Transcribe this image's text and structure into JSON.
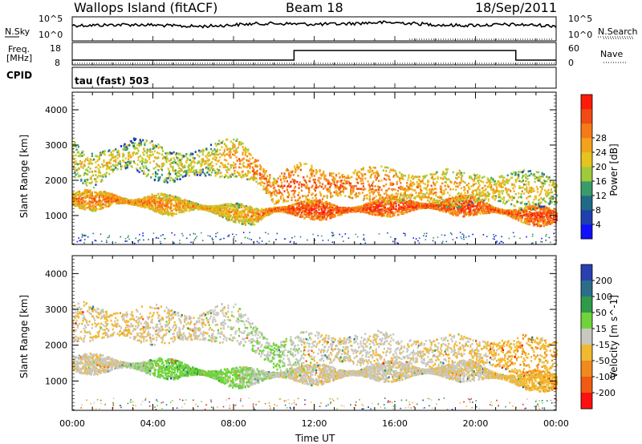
{
  "header": {
    "station": "Wallops Island (fitACF)",
    "beam": "Beam 18",
    "date": "18/Sep/2011"
  },
  "strip_panels": {
    "nsky": {
      "left_label": "N.Sky",
      "right_label": "N.Search",
      "left_ticks": [
        "10^5",
        "10^0"
      ],
      "right_ticks": [
        "10^5",
        "10^0"
      ]
    },
    "freq": {
      "left_label_line1": "Freq.",
      "left_label_line2": "[MHz]",
      "right_label": "Nave",
      "left_ticks": [
        "18",
        "8"
      ],
      "right_ticks": [
        "60",
        "0"
      ]
    },
    "cpid": {
      "label": "CPID",
      "value": "tau (fast) 503"
    }
  },
  "time_axis": {
    "label": "Time UT",
    "ticks": [
      "00:00",
      "04:00",
      "08:00",
      "12:00",
      "16:00",
      "20:00",
      "00:00"
    ]
  },
  "chart_data": [
    {
      "type": "heatmap",
      "quantity": "Power",
      "ylabel": "Slant Range [km]",
      "xlabel": "Time UT",
      "yticks": [
        1000,
        2000,
        3000,
        4000
      ],
      "xlim_hours": [
        0,
        24
      ],
      "ylim": [
        180,
        4500
      ],
      "colorbar": {
        "title": "Power [dB]",
        "ticks": [
          "4",
          "8",
          "12",
          "16",
          "20",
          "24",
          "28"
        ],
        "colors": [
          "#1010ff",
          "#1e3fb0",
          "#1f6a86",
          "#3a9b6a",
          "#9ecb3a",
          "#e6c41e",
          "#f4a21c",
          "#f77a18",
          "#f04b14",
          "#ff1a0a"
        ]
      },
      "echo_bands": [
        {
          "name": "lower",
          "t_hours": [
            0,
            1,
            2,
            3,
            4,
            5,
            6,
            7,
            8,
            9,
            10,
            11,
            12,
            13,
            14,
            16,
            18,
            20,
            22,
            24
          ],
          "range_km": [
            1500,
            1450,
            1500,
            1400,
            1400,
            1300,
            1300,
            1200,
            1100,
            1000,
            1200,
            1200,
            1200,
            1150,
            1200,
            1300,
            1300,
            1300,
            1050,
            1000
          ],
          "power_db": [
            22,
            22,
            24,
            22,
            22,
            20,
            20,
            20,
            18,
            20,
            26,
            28,
            28,
            28,
            28,
            28,
            28,
            28,
            26,
            28
          ]
        },
        {
          "name": "upper",
          "t_hours": [
            0,
            1,
            2,
            3,
            4,
            5,
            6,
            7,
            8,
            9,
            10,
            11,
            12,
            14,
            16,
            18,
            20,
            22
          ],
          "range_km": [
            2700,
            2300,
            2600,
            2800,
            2600,
            2400,
            2500,
            2600,
            2700,
            2400,
            1700,
            2000,
            1900,
            1900,
            1850,
            1800,
            1800,
            1750
          ],
          "power_db": [
            14,
            16,
            16,
            14,
            16,
            14,
            14,
            16,
            20,
            22,
            24,
            26,
            24,
            24,
            22,
            20,
            18,
            16
          ]
        }
      ]
    },
    {
      "type": "heatmap",
      "quantity": "Velocity",
      "ylabel": "Slant Range [km]",
      "xlabel": "Time UT",
      "yticks": [
        1000,
        2000,
        3000,
        4000
      ],
      "xlim_hours": [
        0,
        24
      ],
      "ylim": [
        180,
        4500
      ],
      "colorbar": {
        "title": "Velocity [m s^-1]",
        "ticks": [
          "200",
          "100",
          "50",
          "15",
          "-15",
          "-50",
          "-100",
          "-200"
        ],
        "colors": [
          "#2a3fb0",
          "#2c6e8a",
          "#2f9a4a",
          "#6fd43a",
          "#c8c8c0",
          "#f2b830",
          "#f08a1c",
          "#f05a12",
          "#ff1010"
        ]
      },
      "echo_bands": [
        {
          "name": "lower",
          "t_hours": [
            0,
            2,
            4,
            6,
            8,
            10,
            12,
            14,
            16,
            18,
            20,
            22,
            24
          ],
          "range_km": [
            1500,
            1500,
            1400,
            1300,
            1100,
            1200,
            1200,
            1250,
            1300,
            1300,
            1300,
            1050,
            1000
          ],
          "velocity_ms": [
            -10,
            -5,
            30,
            35,
            30,
            0,
            -5,
            -5,
            -5,
            -5,
            -5,
            -30,
            -40
          ]
        },
        {
          "name": "upper",
          "t_hours": [
            0,
            2,
            4,
            6,
            8,
            10,
            12,
            14,
            16,
            18,
            20,
            22
          ],
          "range_km": [
            2700,
            2600,
            2600,
            2500,
            2700,
            1700,
            1900,
            1900,
            1850,
            1800,
            1800,
            1750
          ],
          "velocity_ms": [
            -10,
            -20,
            -10,
            -5,
            0,
            20,
            -5,
            -5,
            -5,
            -10,
            -20,
            -40
          ]
        }
      ]
    }
  ]
}
